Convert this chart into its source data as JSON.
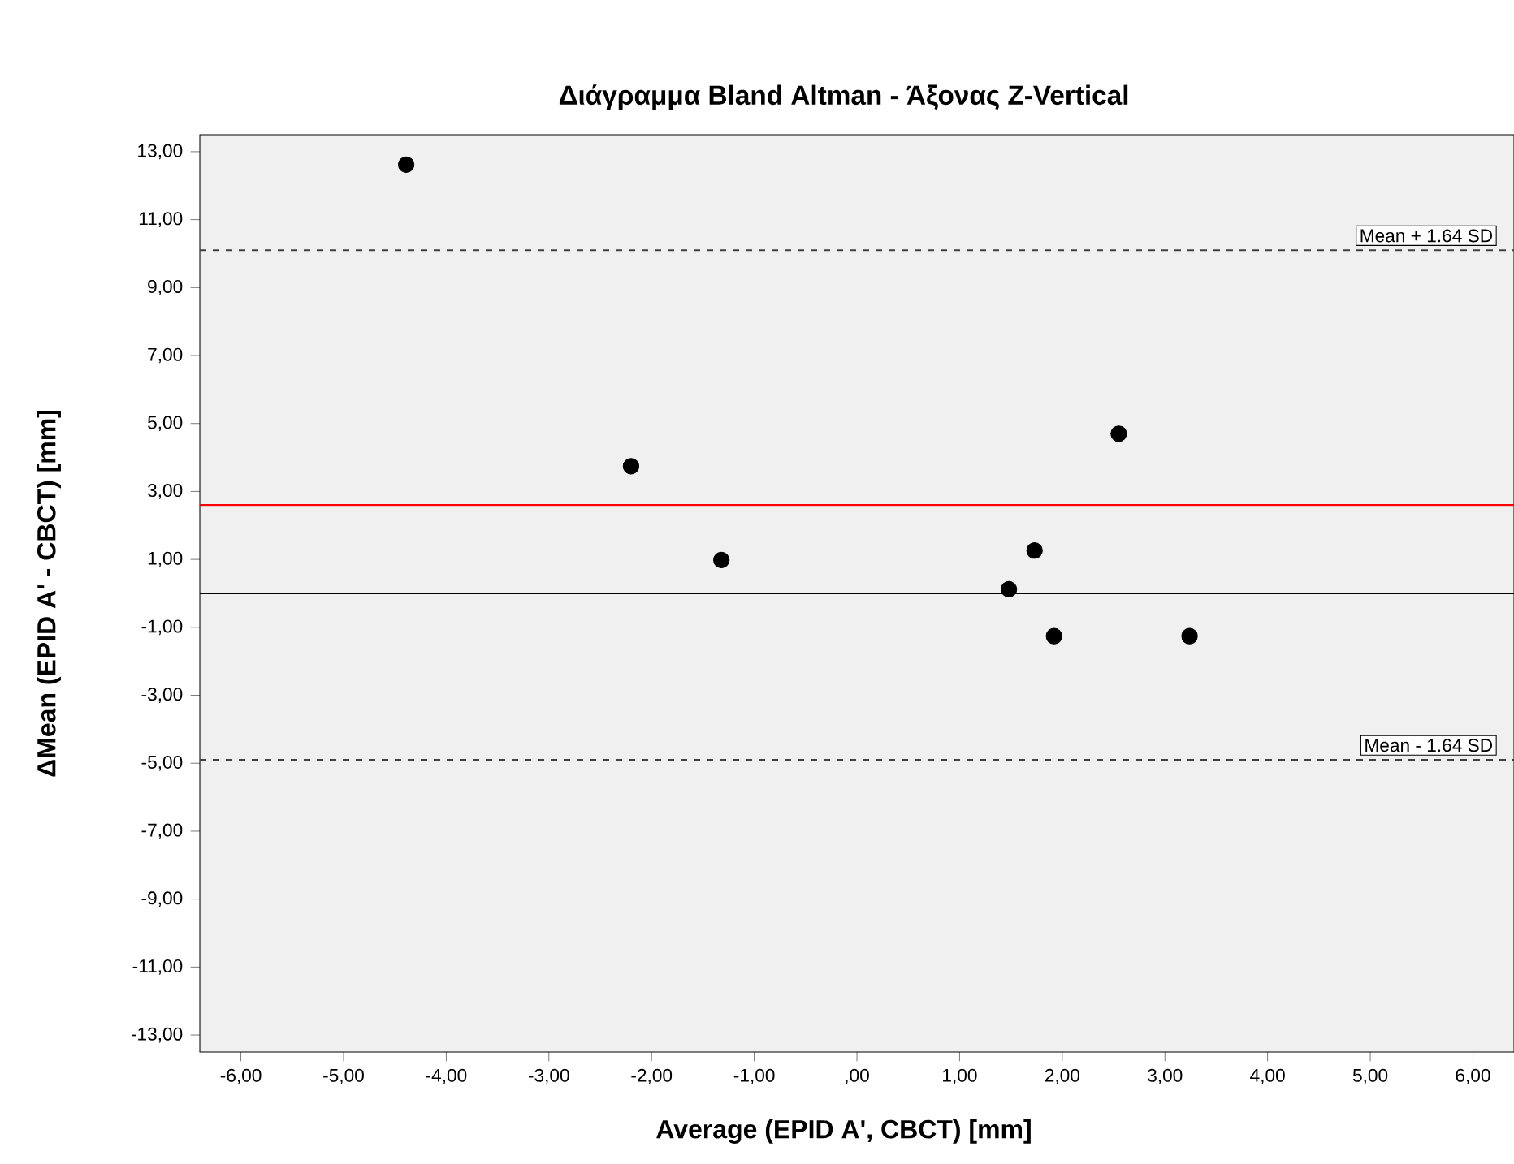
{
  "chart_data": {
    "type": "scatter",
    "title": "Διάγραμμα Bland Altman - Άξονας Z-Vertical",
    "xlabel": "Average (EPID A', CBCT) [mm]",
    "ylabel": "ΔMean (EPID A' - CBCT) [mm]",
    "x": [
      -4.39,
      -2.2,
      -1.32,
      1.48,
      1.73,
      1.92,
      2.55,
      3.24
    ],
    "series": [
      {
        "color": "#000000",
        "values": [
          12.62,
          3.74,
          0.98,
          0.12,
          1.26,
          -1.26,
          4.7,
          -1.26
        ]
      }
    ],
    "marker": "circle",
    "grid": false,
    "xlim": [
      -6.4,
      6.4
    ],
    "ylim": [
      -13.5,
      13.5
    ],
    "xticks": [
      {
        "value": -6,
        "label": "-6,00"
      },
      {
        "value": -5,
        "label": "-5,00"
      },
      {
        "value": -4,
        "label": "-4,00"
      },
      {
        "value": -3,
        "label": "-3,00"
      },
      {
        "value": -2,
        "label": "-2,00"
      },
      {
        "value": -1,
        "label": "-1,00"
      },
      {
        "value": 0,
        "label": ",00"
      },
      {
        "value": 1,
        "label": "1,00"
      },
      {
        "value": 2,
        "label": "2,00"
      },
      {
        "value": 3,
        "label": "3,00"
      },
      {
        "value": 4,
        "label": "4,00"
      },
      {
        "value": 5,
        "label": "5,00"
      },
      {
        "value": 6,
        "label": "6,00"
      }
    ],
    "yticks": [
      {
        "value": -13,
        "label": "-13,00"
      },
      {
        "value": -11,
        "label": "-11,00"
      },
      {
        "value": -9,
        "label": "-9,00"
      },
      {
        "value": -7,
        "label": "-7,00"
      },
      {
        "value": -5,
        "label": "-5,00"
      },
      {
        "value": -3,
        "label": "-3,00"
      },
      {
        "value": -1,
        "label": "-1,00"
      },
      {
        "value": 1,
        "label": "1,00"
      },
      {
        "value": 3,
        "label": "3,00"
      },
      {
        "value": 5,
        "label": "5,00"
      },
      {
        "value": 7,
        "label": "7,00"
      },
      {
        "value": 9,
        "label": "9,00"
      },
      {
        "value": 11,
        "label": "11,00"
      },
      {
        "value": 13,
        "label": "13,00"
      }
    ],
    "ref_lines": [
      {
        "axis": "y",
        "value": 10.1,
        "label": "Mean + 1.64 SD",
        "color": "#404040",
        "line_style": "dashed"
      },
      {
        "axis": "y",
        "value": 2.6,
        "color": "#ff0000",
        "line_style": "solid"
      },
      {
        "axis": "y",
        "value": 0,
        "color": "#000000",
        "line_style": "solid"
      },
      {
        "axis": "y",
        "value": -4.9,
        "label": "Mean - 1.64 SD",
        "color": "#404040",
        "line_style": "dashed"
      }
    ]
  }
}
